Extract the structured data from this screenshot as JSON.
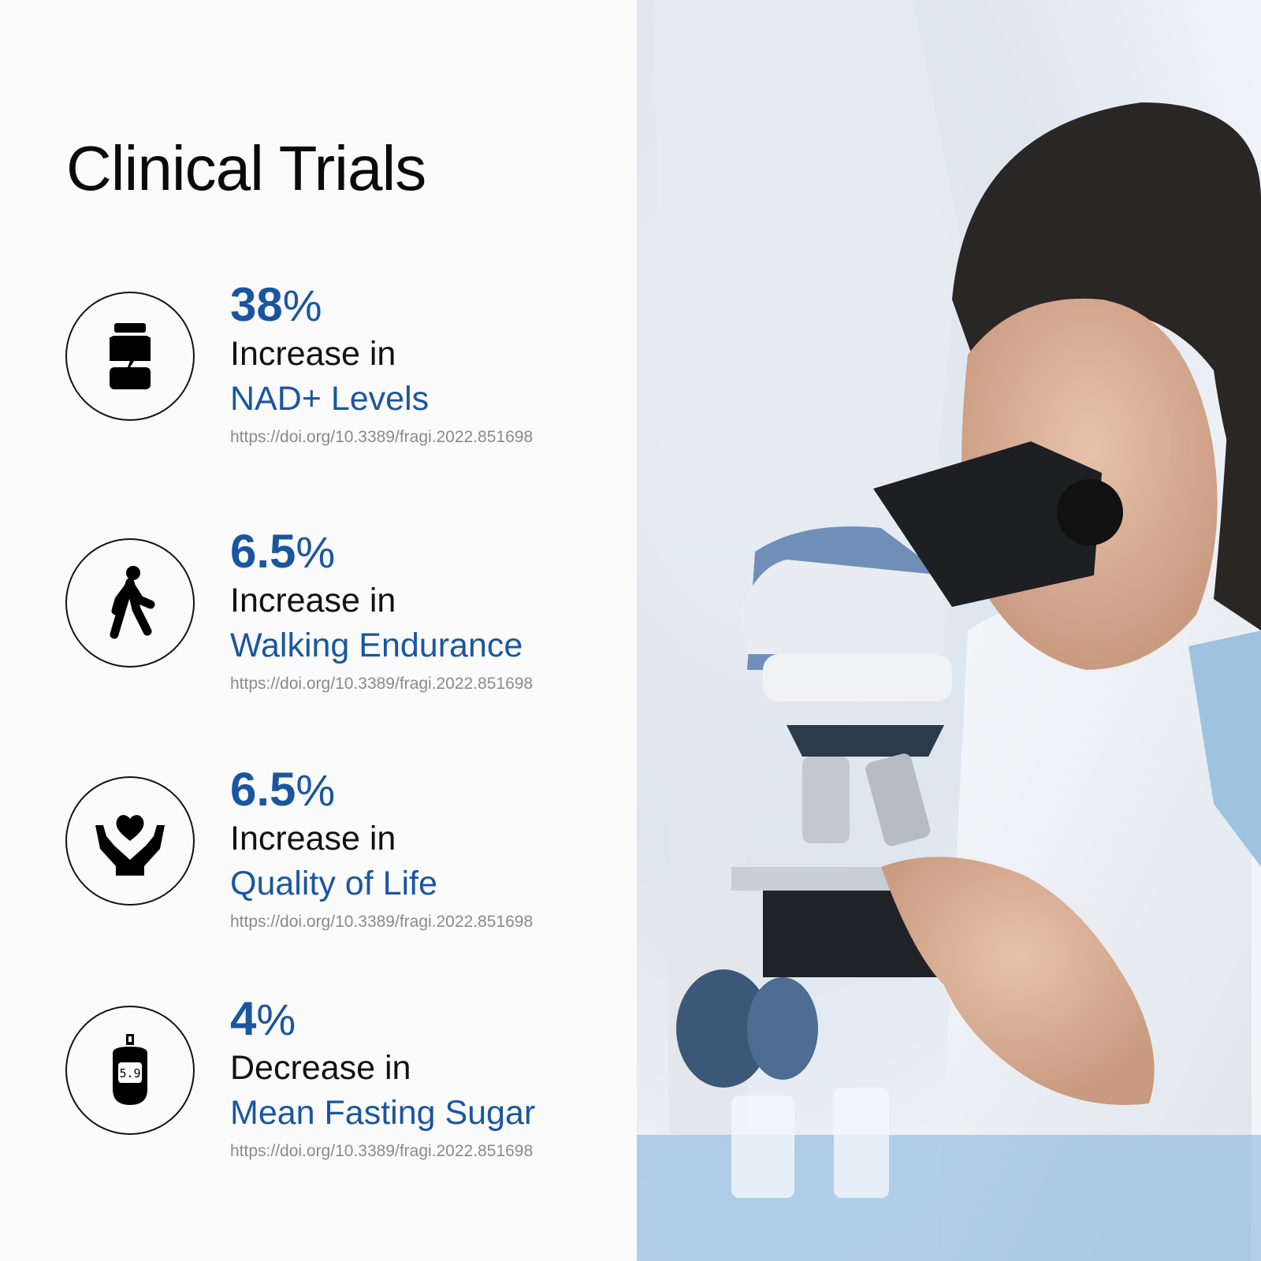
{
  "title": "Clinical Trials",
  "accent_color": "#1a56a0",
  "stats": [
    {
      "icon": "supplement-jar-icon",
      "value": "38",
      "unit": "%",
      "line1": "Increase in",
      "line2": "NAD+ Levels",
      "doi": "https://doi.org/10.3389/fragi.2022.851698"
    },
    {
      "icon": "walking-person-icon",
      "value": "6.5",
      "unit": "%",
      "line1": "Increase in",
      "line2": "Walking Endurance",
      "doi": "https://doi.org/10.3389/fragi.2022.851698"
    },
    {
      "icon": "heart-hands-icon",
      "value": "6.5",
      "unit": "%",
      "line1": "Increase in",
      "line2": "Quality of Life",
      "doi": "https://doi.org/10.3389/fragi.2022.851698"
    },
    {
      "icon": "glucose-meter-icon",
      "value": "4",
      "unit": "%",
      "line1": "Decrease in",
      "line2": "Mean Fasting Sugar",
      "doi": "https://doi.org/10.3389/fragi.2022.851698",
      "meter_reading": "5.9"
    }
  ]
}
